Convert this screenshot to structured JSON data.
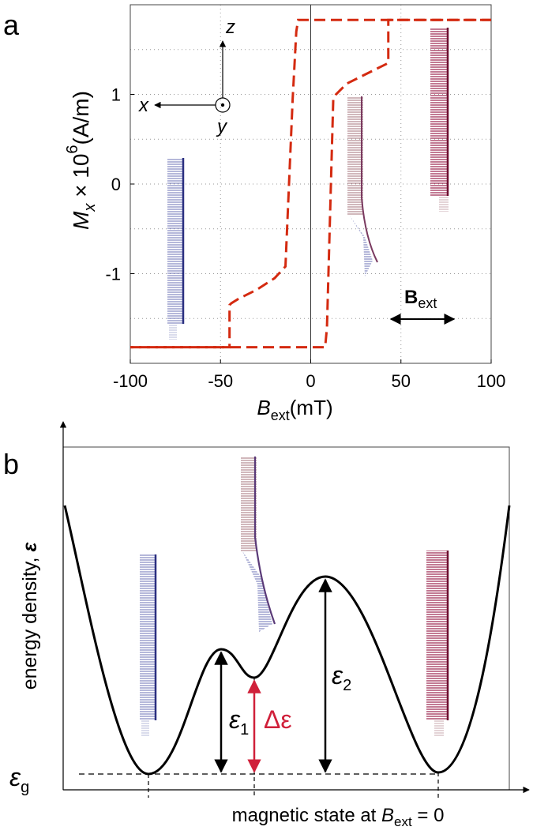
{
  "chart_data": {
    "type": "line",
    "panel_label": "a",
    "xlabel": {
      "main": "B",
      "sub": "ext",
      "unit": "(mT)"
    },
    "ylabel": {
      "main": "M",
      "sub": "x",
      "mid": " × 10",
      "sup": "6",
      "unit": "(A/m)"
    },
    "xlim": [
      -100,
      100
    ],
    "ylim": [
      -2,
      2
    ],
    "xticks": [
      -100,
      -50,
      0,
      50,
      100
    ],
    "yticks": [
      -1,
      0,
      1
    ],
    "yminor": [
      -1.5,
      -0.5,
      0.5,
      1.5
    ],
    "grid": true,
    "zero_line": true,
    "line_style": "dashed",
    "series": [
      {
        "color": "#d42a10",
        "x": [
          100,
          -7,
          -8,
          -10,
          -14,
          -20,
          -30,
          -40,
          -44,
          -45,
          -45,
          -100
        ],
        "values": [
          1.83,
          1.83,
          1.7,
          0.95,
          -0.92,
          -1.05,
          -1.18,
          -1.28,
          -1.33,
          -1.35,
          -1.82,
          -1.82
        ]
      },
      {
        "color": "#d42a10",
        "x": [
          -100,
          8,
          9,
          12.5,
          14,
          20,
          30,
          40,
          43,
          43,
          100
        ],
        "values": [
          -1.82,
          -1.82,
          -1.6,
          0.95,
          1.0,
          1.12,
          1.22,
          1.32,
          1.35,
          1.83,
          1.83
        ]
      }
    ],
    "axes_labels": {
      "x": "x",
      "y": "y",
      "z": "z"
    },
    "field_label": {
      "main": "B",
      "sub": "ext"
    }
  },
  "diagram": {
    "panel_label": "b",
    "ylabel": {
      "main": "energy density, ",
      "sym": "ε"
    },
    "xlabel": {
      "main": "magnetic state at ",
      "B": "B",
      "sub": "ext",
      "tail": " = 0"
    },
    "eps_g": {
      "sym": "ε",
      "sub": "g"
    },
    "eps_1": {
      "sym": "ε",
      "sub": "1"
    },
    "eps_2": {
      "sym": "ε",
      "sub": "2"
    },
    "delta": "Δε"
  }
}
